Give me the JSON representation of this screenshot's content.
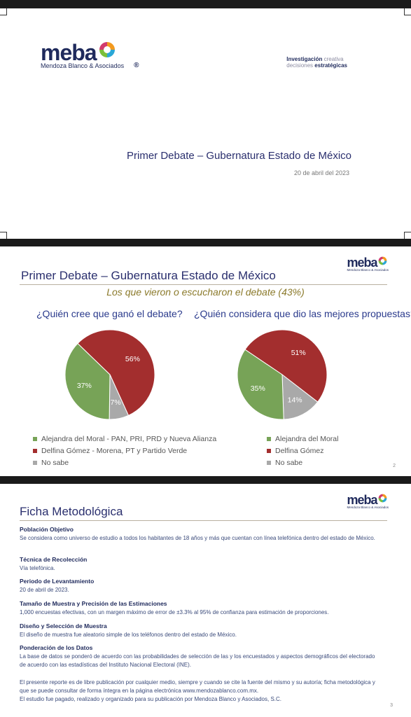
{
  "brand": {
    "logo_word": "meba",
    "logo_sub": "Mendoza Blanco & Asociados",
    "registered": "®",
    "tagline_1a": "Investigación",
    "tagline_1b": "creativa",
    "tagline_2a": "decisiones",
    "tagline_2b": "estratégicas"
  },
  "slide1": {
    "title": "Primer Debate – Gubernatura Estado de México",
    "date": "20 de abril del 2023"
  },
  "slide2": {
    "title": "Primer Debate – Gubernatura Estado de México",
    "subtitle": "Los que vieron o escucharon el debate (43%)",
    "page": "2"
  },
  "chart_data": [
    {
      "type": "pie",
      "title": "¿Quién cree que ganó el debate?",
      "categories": [
        "Alejandra del Moral - PAN, PRI, PRD y Nueva Alianza",
        "Delfina Gómez - Morena, PT y Partido Verde",
        "No sabe"
      ],
      "values": [
        37,
        56,
        7
      ],
      "labels": [
        "37%",
        "56%",
        "7%"
      ],
      "colors": [
        "#77a357",
        "#a32e2e",
        "#a9a9a9"
      ],
      "legend": "bottom"
    },
    {
      "type": "pie",
      "title": "¿Quién considera que dio las mejores propuestas?",
      "categories": [
        "Alejandra del Moral",
        "Delfina Gómez",
        "No sabe"
      ],
      "values": [
        35,
        51,
        14
      ],
      "labels": [
        "35%",
        "51%",
        "14%"
      ],
      "colors": [
        "#77a357",
        "#a32e2e",
        "#a9a9a9"
      ],
      "legend": "bottom"
    }
  ],
  "slide3": {
    "title": "Ficha Metodológica",
    "page": "3",
    "sections": [
      {
        "heading": "Población Objetivo",
        "body": "Se considera como universo de estudio a todos los habitantes de 18 años y más que cuentan con línea telefónica dentro del estado de México."
      },
      {
        "heading": "Técnica de Recolección",
        "body": "Vía telefónica."
      },
      {
        "heading": "Periodo de Levantamiento",
        "body": "20 de abril de 2023."
      },
      {
        "heading": "Tamaño de Muestra y Precisión de las Estimaciones",
        "body": "1,000 encuestas efectivas, con un margen máximo de error de ±3.3% al 95% de confianza para estimación de proporciones."
      },
      {
        "heading": "Diseño y Selección de Muestra",
        "body": "El diseño de muestra fue aleatorio simple de los teléfonos dentro del estado de México."
      },
      {
        "heading": "Ponderación de los Datos",
        "body": "La base de datos se ponderó de acuerdo con las probabilidades de selección de las y los encuestados y aspectos demográficos del electorado de acuerdo con las estadísticas del Instituto Nacional Electoral (INE)."
      }
    ],
    "footer_1": "El presente reporte es de libre publicación por cualquier medio, siempre y cuando se cite la fuente del mismo y su autoría; ficha metodológica y que se puede consultar de forma íntegra en la página electrónica www.mendozablanco.com.mx.",
    "footer_2": "El estudio fue pagado, realizado y organizado para su publicación por Mendoza Blanco y Asociados, S.C."
  }
}
